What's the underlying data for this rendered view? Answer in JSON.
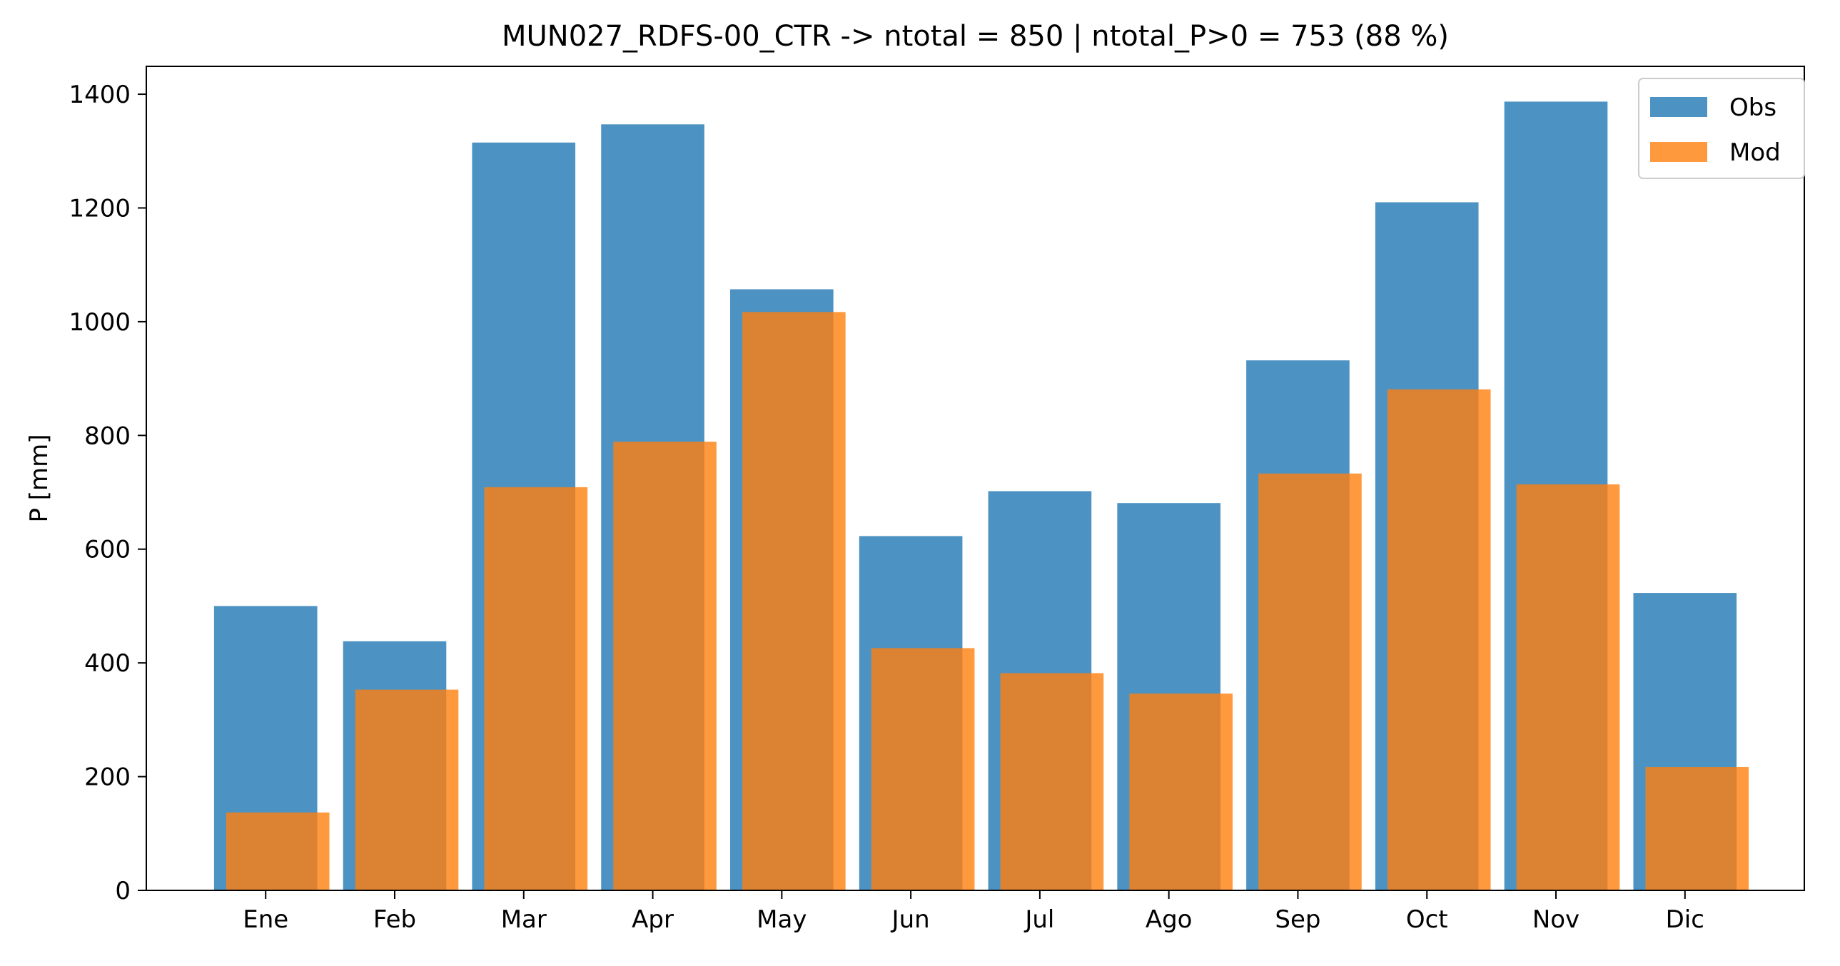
{
  "chart_data": {
    "type": "bar",
    "title": "MUN027_RDFS-00_CTR -> ntotal = 850 | ntotal_P>0 = 753 (88 %)",
    "xlabel": "",
    "ylabel": "P [mm]",
    "categories": [
      "Ene",
      "Feb",
      "Mar",
      "Apr",
      "May",
      "Jun",
      "Jul",
      "Ago",
      "Sep",
      "Oct",
      "Nov",
      "Dic"
    ],
    "series": [
      {
        "name": "Obs",
        "color": "#1f77b4",
        "values": [
          500,
          438,
          1315,
          1347,
          1057,
          623,
          702,
          681,
          932,
          1210,
          1387,
          523
        ]
      },
      {
        "name": "Mod",
        "color": "#ff7f0e",
        "values": [
          137,
          353,
          709,
          789,
          1017,
          426,
          382,
          346,
          733,
          881,
          714,
          217
        ]
      }
    ],
    "ylim": [
      0,
      1400
    ],
    "yticks": [
      0,
      200,
      400,
      600,
      800,
      1000,
      1200,
      1400
    ],
    "legend": "top-right",
    "grid": false
  }
}
